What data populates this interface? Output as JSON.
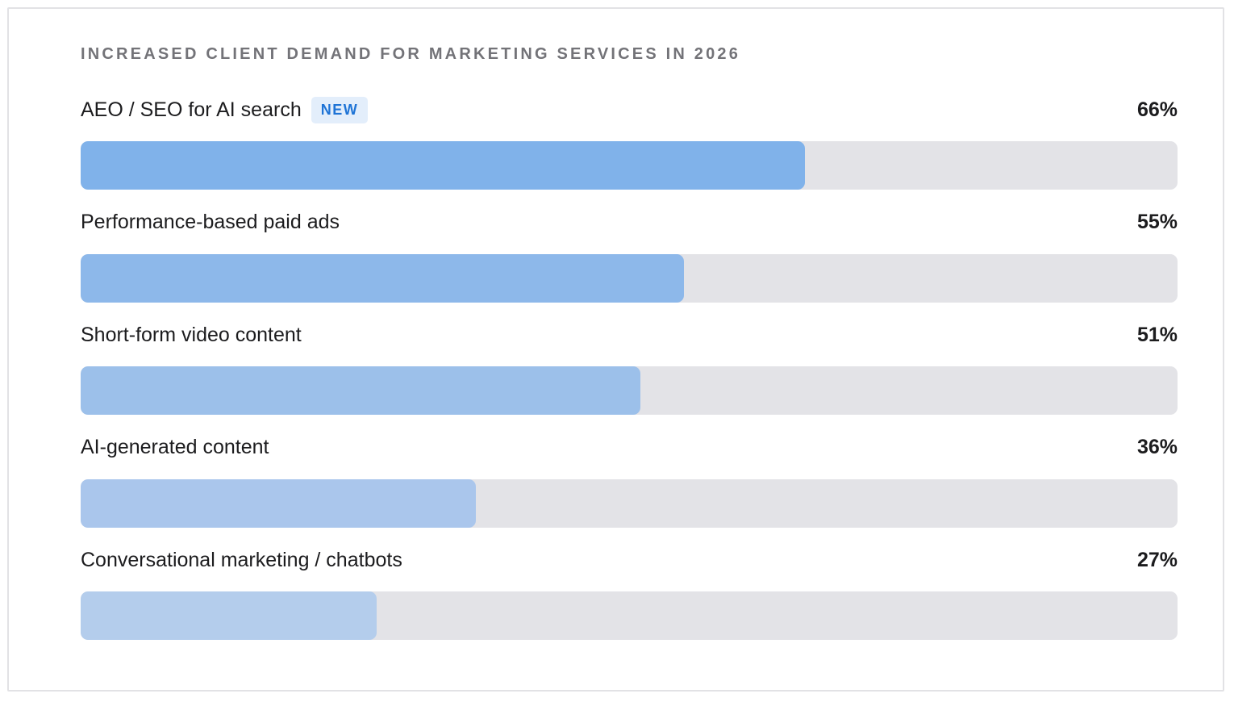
{
  "chart_data": {
    "type": "bar",
    "orientation": "horizontal",
    "title": "INCREASED CLIENT DEMAND FOR MARKETING SERVICES IN 2026",
    "xlim": [
      0,
      100
    ],
    "grid": false,
    "categories": [
      "AEO / SEO for AI search",
      "Performance-based paid ads",
      "Short-form video content",
      "AI-generated content",
      "Conversational marketing / chatbots"
    ],
    "values": [
      66,
      55,
      51,
      36,
      27
    ],
    "value_labels": [
      "66%",
      "55%",
      "51%",
      "36%",
      "27%"
    ],
    "badges": [
      "NEW",
      "",
      "",
      "",
      ""
    ],
    "colors": [
      "#80b2ea",
      "#8db8ea",
      "#9cc0ea",
      "#aac6ec",
      "#b4cdec"
    ],
    "track_color": "#e3e3e7",
    "badge_colors": {
      "background": "#e3eefb",
      "text": "#1f74d6"
    }
  }
}
